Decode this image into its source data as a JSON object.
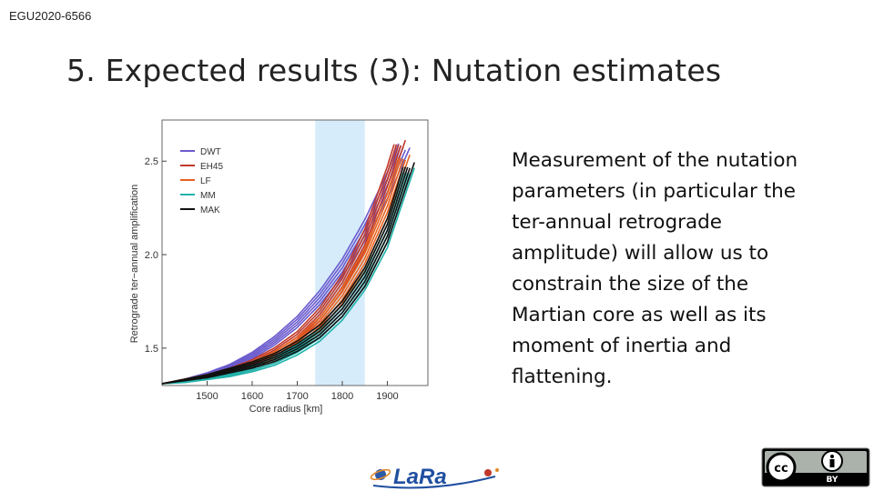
{
  "header": {
    "tag": "EGU2020-6566",
    "title": "5. Expected results (3): Nutation estimates"
  },
  "body_text": "Measurement of the nutation parameters (in particular the ter-annual retrograde amplitude) will allow us to constrain the size of the Martian core as well as its moment of inertia and flattening.",
  "logos": {
    "lara_text": "LaRa",
    "license": "BY"
  },
  "colors": {
    "DWT": "#6a5acd",
    "EH45": "#c0392b",
    "LF": "#e8621f",
    "MM": "#20b2aa",
    "MAK": "#111111",
    "band": "#d6ecfb"
  },
  "chart_data": {
    "type": "line",
    "xlabel": "Core radius  [km]",
    "ylabel": "Retrograde ter−annual amplification",
    "xlim": [
      1400,
      1990
    ],
    "ylim": [
      1.3,
      2.72
    ],
    "xticks": [
      1500,
      1600,
      1700,
      1800,
      1900
    ],
    "yticks": [
      1.5,
      2.0,
      2.5
    ],
    "highlight_band": [
      1740,
      1850
    ],
    "legend": {
      "placement": "top-left"
    },
    "series": [
      {
        "name": "DWT",
        "x": [
          1400,
          1450,
          1500,
          1550,
          1600,
          1650,
          1700,
          1750,
          1800,
          1850,
          1900,
          1950
        ],
        "y": [
          1.31,
          1.33,
          1.36,
          1.4,
          1.46,
          1.54,
          1.64,
          1.77,
          1.93,
          2.13,
          2.37,
          2.66
        ]
      },
      {
        "name": "EH45",
        "x": [
          1400,
          1450,
          1500,
          1550,
          1600,
          1650,
          1700,
          1750,
          1800,
          1850,
          1900,
          1940
        ],
        "y": [
          1.31,
          1.33,
          1.35,
          1.38,
          1.42,
          1.48,
          1.56,
          1.68,
          1.85,
          2.08,
          2.4,
          2.7
        ]
      },
      {
        "name": "LF",
        "x": [
          1400,
          1450,
          1500,
          1550,
          1600,
          1650,
          1700,
          1750,
          1800,
          1850,
          1900,
          1950
        ],
        "y": [
          1.31,
          1.33,
          1.35,
          1.37,
          1.41,
          1.46,
          1.53,
          1.63,
          1.78,
          1.98,
          2.26,
          2.62
        ]
      },
      {
        "name": "MM",
        "x": [
          1400,
          1450,
          1500,
          1550,
          1600,
          1650,
          1700,
          1750,
          1800,
          1850,
          1900,
          1960
        ],
        "y": [
          1.31,
          1.32,
          1.34,
          1.36,
          1.39,
          1.43,
          1.49,
          1.57,
          1.69,
          1.86,
          2.1,
          2.55
        ]
      },
      {
        "name": "MAK",
        "x": [
          1400,
          1450,
          1500,
          1550,
          1600,
          1650,
          1700,
          1750,
          1800,
          1850,
          1900,
          1960
        ],
        "y": [
          1.31,
          1.33,
          1.35,
          1.38,
          1.41,
          1.45,
          1.51,
          1.59,
          1.71,
          1.88,
          2.13,
          2.58
        ]
      }
    ]
  }
}
